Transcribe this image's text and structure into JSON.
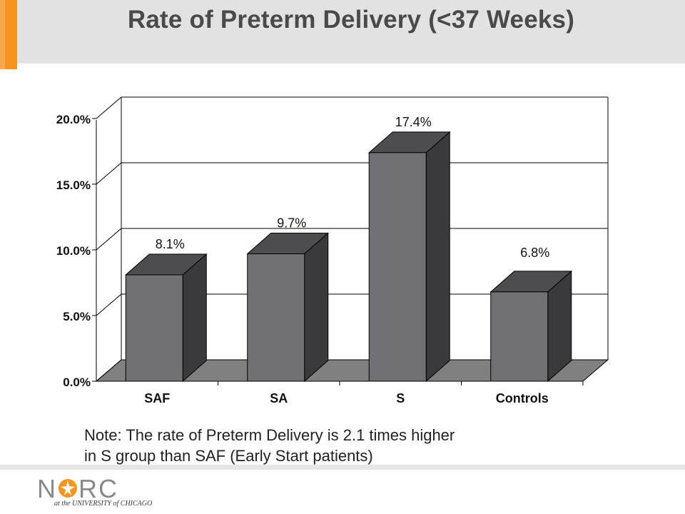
{
  "slide": {
    "title": "Rate of Preterm Delivery (<37 Weeks)",
    "note_line1": "Note:  The rate of Preterm Delivery is 2.1 times higher",
    "note_line2": "in S group than SAF (Early Start patients)"
  },
  "logo": {
    "letters_n": "N",
    "letters_rc": "RC",
    "subtitle": "at the UNIVERSITY of CHICAGO",
    "accent_color": "#f7941d"
  },
  "colors": {
    "accent": "#f7941d",
    "bar_front": "#707075",
    "bar_side": "#3a3a3c",
    "bar_top": "#4d4d50",
    "floor": "#808080"
  },
  "chart_data": {
    "type": "bar",
    "title": "Rate of Preterm Delivery (<37 Weeks)",
    "categories": [
      "SAF",
      "SA",
      "S",
      "Controls"
    ],
    "values": [
      8.1,
      9.7,
      17.4,
      6.8
    ],
    "value_labels": [
      "8.1%",
      "9.7%",
      "17.4%",
      "6.8%"
    ],
    "yticks": [
      "0.0%",
      "5.0%",
      "10.0%",
      "15.0%",
      "20.0%"
    ],
    "ylim": [
      0,
      20
    ],
    "grid": true,
    "three_d": true,
    "legend": "none"
  }
}
